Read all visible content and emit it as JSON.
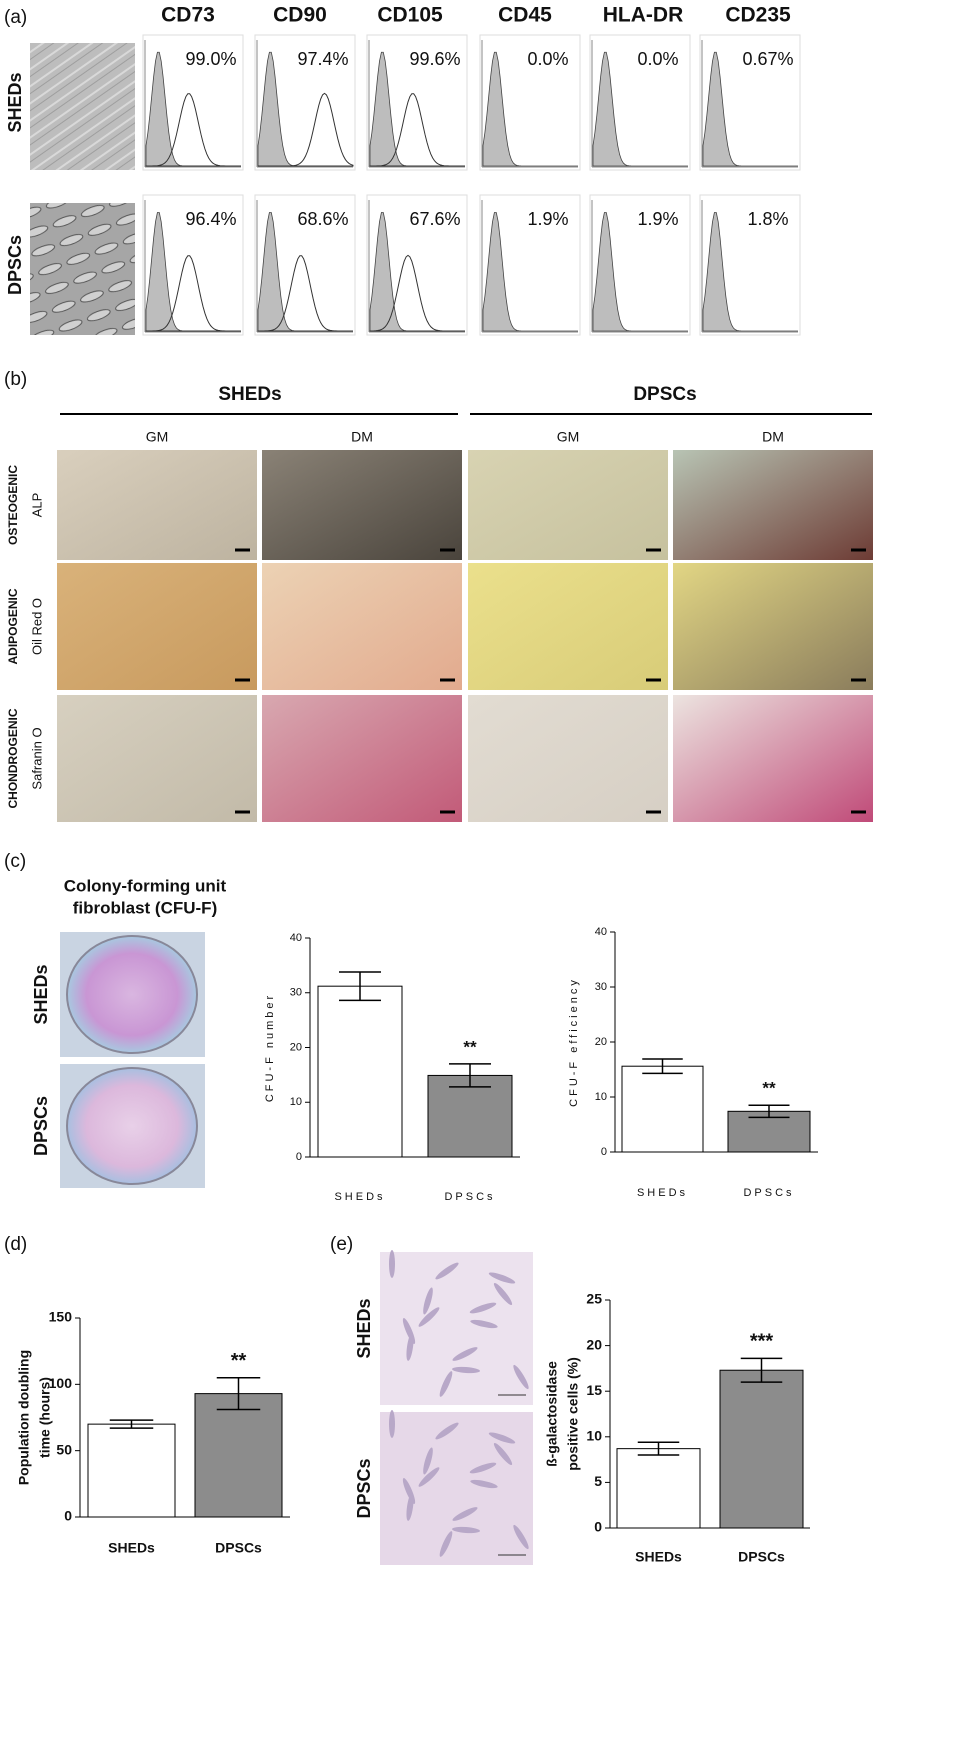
{
  "panels": {
    "a": {
      "label": "(a)",
      "markers": [
        "CD73",
        "CD90",
        "CD105",
        "CD45",
        "HLA-DR",
        "CD235"
      ],
      "rows": [
        {
          "name": "SHEDs",
          "percents": [
            "99.0%",
            "97.4%",
            "99.6%",
            "0.0%",
            "0.0%",
            "0.67%"
          ]
        },
        {
          "name": "DPSCs",
          "percents": [
            "96.4%",
            "68.6%",
            "67.6%",
            "1.9%",
            "1.9%",
            "1.8%"
          ]
        }
      ]
    },
    "b": {
      "label": "(b)",
      "groups": [
        "SHEDs",
        "DPSCs"
      ],
      "media": [
        "GM",
        "DM",
        "GM",
        "DM"
      ],
      "lineages": [
        {
          "name": "OSTEOGENIC",
          "stain": "ALP"
        },
        {
          "name": "ADIPOGENIC",
          "stain": "Oil Red O"
        },
        {
          "name": "CHONDROGENIC",
          "stain": "Safranin O"
        }
      ]
    },
    "c": {
      "label": "(c)",
      "title": [
        "Colony-forming unit",
        "fibroblast (CFU-F)"
      ],
      "rows": [
        "SHEDs",
        "DPSCs"
      ]
    },
    "d": {
      "label": "(d)"
    },
    "e": {
      "label": "(e)",
      "rows": [
        "SHEDs",
        "DPSCs"
      ]
    }
  },
  "chart_data": [
    {
      "type": "bar",
      "ylabel": "CFU-F number",
      "categories": [
        "SHEDs",
        "DPSCs"
      ],
      "values": [
        31.2,
        14.9
      ],
      "errors": [
        2.6,
        2.1
      ],
      "colors": [
        "#ffffff",
        "#8c8c8c"
      ],
      "significance": [
        null,
        "**"
      ],
      "ylim": [
        0,
        40
      ],
      "yticks": [
        0,
        10,
        20,
        30,
        40
      ]
    },
    {
      "type": "bar",
      "ylabel": "CFU-F efficiency",
      "categories": [
        "SHEDs",
        "DPSCs"
      ],
      "values": [
        15.6,
        7.4
      ],
      "errors": [
        1.3,
        1.1
      ],
      "colors": [
        "#ffffff",
        "#8c8c8c"
      ],
      "significance": [
        null,
        "**"
      ],
      "ylim": [
        0,
        40
      ],
      "yticks": [
        0,
        10,
        20,
        30,
        40
      ]
    },
    {
      "type": "bar",
      "ylabel": [
        "Population doubling",
        "time (hours)"
      ],
      "categories": [
        "SHEDs",
        "DPSCs"
      ],
      "values": [
        70,
        93
      ],
      "errors": [
        3,
        12
      ],
      "colors": [
        "#ffffff",
        "#8c8c8c"
      ],
      "significance": [
        null,
        "**"
      ],
      "ylim": [
        0,
        150
      ],
      "yticks": [
        0,
        50,
        100,
        150
      ]
    },
    {
      "type": "bar",
      "ylabel": [
        "ß-galactosidase",
        "positive cells (%)"
      ],
      "categories": [
        "SHEDs",
        "DPSCs"
      ],
      "values": [
        8.7,
        17.3
      ],
      "errors": [
        0.7,
        1.3
      ],
      "colors": [
        "#ffffff",
        "#8c8c8c"
      ],
      "significance": [
        null,
        "***"
      ],
      "ylim": [
        0,
        25
      ],
      "yticks": [
        0,
        5,
        10,
        15,
        20,
        25
      ]
    }
  ]
}
